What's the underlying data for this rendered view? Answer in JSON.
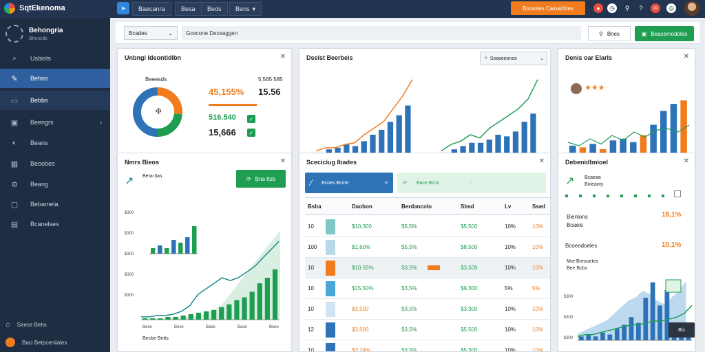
{
  "app": {
    "title": "SqtEkenoma"
  },
  "topnav": {
    "items": [
      "Baecanra",
      "Besa",
      "Beds",
      "Bens"
    ]
  },
  "topbar": {
    "search_label": "Boraoles Caloadiries"
  },
  "sidebar": {
    "title": "Behongria",
    "subtitle": "Bhoscds",
    "items": [
      {
        "label": "Usbiots",
        "icon": "search-icon"
      },
      {
        "label": "Behns",
        "icon": "edit-icon"
      },
      {
        "label": "Bebbs",
        "icon": "monitor-icon"
      },
      {
        "label": "Beengrs",
        "icon": "folder-icon"
      },
      {
        "label": "Beans",
        "icon": "settings-icon"
      },
      {
        "label": "Beoobes",
        "icon": "grid-icon"
      },
      {
        "label": "Beang",
        "icon": "gear-icon"
      },
      {
        "label": "Bebamela",
        "icon": "monitor-icon"
      },
      {
        "label": "Bcanelses",
        "icon": "table-icon"
      }
    ],
    "footer": [
      {
        "label": "Seece Behs"
      },
      {
        "label": "Baci Betpceniiales"
      }
    ]
  },
  "filterbar": {
    "dropdown": "Bcades",
    "breadcrumb": "Gcecone Deceaggen",
    "btn_light": "Bnes",
    "btn_green": "Beacemodoles"
  },
  "cards": {
    "c1": {
      "title": "Unbngi Ideontidibn",
      "donut_label": "Beeesds",
      "big1": "45,155%",
      "big2": "15.56",
      "row1": "516.540",
      "row2": "15,666",
      "small_top": "5,565 585"
    },
    "c2": {
      "title": "Dseist Beerbeis",
      "search": "Seaseeonce",
      "left_bars": [
        3,
        5,
        6,
        8,
        7,
        10,
        14,
        17,
        22,
        26,
        32
      ],
      "left_line": [
        4,
        6,
        6,
        8,
        9,
        14,
        18,
        22,
        30,
        38,
        48
      ],
      "right_bars": [
        3,
        5,
        7,
        9,
        9,
        11,
        14,
        13,
        16,
        22,
        27
      ],
      "right_line": [
        4,
        8,
        10,
        14,
        12,
        18,
        22,
        26,
        30,
        36,
        48
      ]
    },
    "c3": {
      "title": "Denis oar Elarls",
      "bars": [
        {
          "v": 6,
          "c": "blue"
        },
        {
          "v": 5,
          "c": "orange"
        },
        {
          "v": 7,
          "c": "blue"
        },
        {
          "v": 4,
          "c": "orange"
        },
        {
          "v": 9,
          "c": "blue"
        },
        {
          "v": 10,
          "c": "blue"
        },
        {
          "v": 8,
          "c": "blue"
        },
        {
          "v": 12,
          "c": "orange"
        },
        {
          "v": 18,
          "c": "blue"
        },
        {
          "v": 26,
          "c": "blue"
        },
        {
          "v": 30,
          "c": "blue"
        },
        {
          "v": 32,
          "c": "orange"
        }
      ],
      "bar_values": [
        6,
        5,
        7,
        4,
        9,
        10,
        8,
        12,
        18,
        26,
        30,
        32
      ]
    },
    "c4": {
      "title": "Nmrs Bieos",
      "btn": "Bna Itsb",
      "chip": "Bera-3as",
      "yticks": [
        "$300",
        "$300",
        "$300",
        "$300",
        "$300"
      ],
      "xticks": [
        "Bese",
        "Bese",
        "Base",
        "Base",
        "Bseo"
      ],
      "small_bars": [
        2,
        3,
        2,
        5,
        4,
        6,
        10
      ],
      "bars": [
        1,
        1,
        1,
        2,
        2,
        3,
        4,
        5,
        6,
        7,
        9,
        11,
        14,
        16,
        20,
        26,
        30,
        36
      ],
      "line": [
        2,
        2,
        3,
        3,
        4,
        6,
        10,
        18,
        22,
        26,
        30,
        28,
        30,
        34,
        38,
        44,
        50,
        56
      ],
      "footer_label": "Becbe Betts"
    },
    "c5": {
      "title": "Sceciciug Ibades",
      "panel1": "Bcoes Bcme",
      "panel2": "Bace Bcnc",
      "headers": [
        "Bsha",
        "Daobon",
        "Berdancolo",
        "Sbsd",
        "Lv",
        "Ssed"
      ],
      "rows": [
        [
          "10",
          "$10,300",
          "$5,5%",
          "$5,500",
          "10%",
          "10%"
        ],
        [
          "100",
          "$1,60%",
          "$5,5%",
          "$8,500",
          "10%",
          "10%"
        ],
        [
          "10",
          "$10,55%",
          "$3,5%",
          "$3,509",
          "10%",
          "10%"
        ],
        [
          "10",
          "$15,50%",
          "$3,5%",
          "$9,300",
          "5%",
          "5%"
        ],
        [
          "10",
          "$3,500",
          "$3,5%",
          "$3,300",
          "10%",
          "10%"
        ],
        [
          "12",
          "$3,500",
          "$3,5%",
          "$5,500",
          "10%",
          "10%"
        ],
        [
          "10",
          "$3,24%",
          "$3,5%",
          "$5,300",
          "10%",
          "10%"
        ]
      ]
    },
    "c6": {
      "title": "Debenidbnioel",
      "sub": "Bcaeaa",
      "sub2": "Bnleanty",
      "k1": "Bienlons",
      "k1v": "18,1%",
      "k2": "Bcaeis",
      "k3": "Bcoeodoeles",
      "k3v": "10,1%",
      "k4": "Mre Breouetes",
      "k5": "Bee Bcbs",
      "yticks": [
        "$300",
        "$300",
        "$300",
        "$300"
      ],
      "bars": [
        2,
        3,
        2,
        4,
        3,
        6,
        8,
        12,
        9,
        22,
        30,
        18,
        26,
        8,
        6,
        4
      ],
      "area": [
        4,
        6,
        8,
        10,
        12,
        16,
        20,
        24,
        26,
        30,
        28,
        24,
        22,
        26,
        30,
        36
      ],
      "line": [
        2,
        3,
        3,
        4,
        5,
        6,
        7,
        8,
        8,
        9,
        10,
        10,
        11,
        12,
        14,
        18
      ],
      "tooltip": "Bis"
    }
  },
  "colors": {
    "blue": "#2e73b8",
    "orange": "#f07c1e",
    "green": "#1f9e52",
    "teal": "#1e8a8a"
  }
}
